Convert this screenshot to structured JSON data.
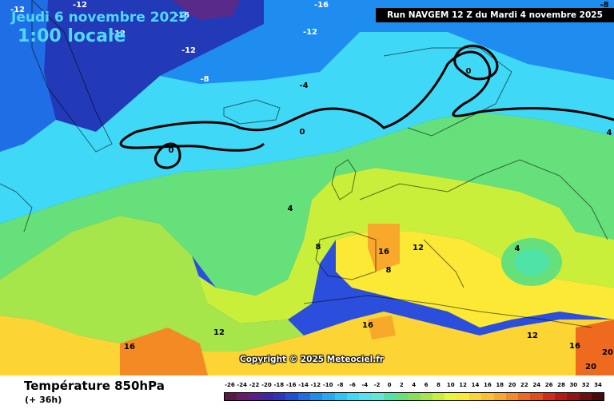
{
  "header": {
    "date": "Jeudi 6 novembre 2025",
    "hour": "1:00 locale",
    "run": "Run NAVGEM 12 Z du Mardi 4 novembre 2025"
  },
  "map": {
    "copyright": "Copyright © 2025 Meteociel.fr",
    "contour_labels": [
      "-12",
      "-12",
      "-16",
      "-16",
      "-12",
      "-12",
      "-12",
      "-8",
      "-4",
      "0",
      "0",
      "0",
      "-8",
      "4",
      "4",
      "4",
      "8",
      "8",
      "12",
      "12",
      "16",
      "16",
      "16",
      "16",
      "12",
      "20",
      "20"
    ]
  },
  "legend": {
    "parameter": "Température 850hPa",
    "lead_time": "(+ 36h)",
    "scale_labels": [
      "-26",
      "-24",
      "-22",
      "-20",
      "-18",
      "-16",
      "-14",
      "-12",
      "-10",
      "-8",
      "-6",
      "-4",
      "-2",
      "0",
      "2",
      "4",
      "6",
      "8",
      "10",
      "12",
      "14",
      "16",
      "18",
      "20",
      "22",
      "24",
      "26",
      "28",
      "30",
      "32",
      "34"
    ],
    "scale_colors": [
      "#5a1848",
      "#6a1a6a",
      "#5a1f8f",
      "#3f25a8",
      "#2f34c0",
      "#1f4fd9",
      "#1f6ee6",
      "#1f8df0",
      "#22aaf5",
      "#2fc4f8",
      "#3fd8f7",
      "#52e3ee",
      "#5fe8d8",
      "#4fe3a8",
      "#66e07a",
      "#86e05a",
      "#a6e64a",
      "#c9ef3a",
      "#eaf535",
      "#fbe935",
      "#fcd535",
      "#fbc030",
      "#f8a82a",
      "#f38a23",
      "#ee6a1e",
      "#e44a1a",
      "#d42a18",
      "#b81816",
      "#961414",
      "#6e1010",
      "#4a0a0a"
    ]
  },
  "colors": {
    "title_text": "#4fd9ff",
    "isotherm_zero": "#000000"
  }
}
